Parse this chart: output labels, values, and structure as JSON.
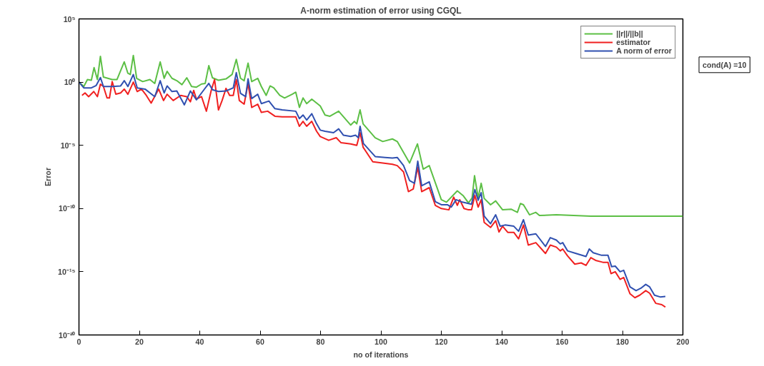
{
  "chart_data": {
    "type": "line",
    "title": "A-norm estimation of error using CGQL",
    "xlabel": "no of iterations",
    "ylabel": "Error",
    "log": "y",
    "xlim": [
      0,
      200
    ],
    "xticks": [
      0,
      20,
      40,
      60,
      80,
      100,
      120,
      140,
      160,
      180,
      200
    ],
    "ylim": [
      1e-20,
      100000
    ],
    "yticks": [
      {
        "value": 1e-20,
        "label": "10⁻²⁰"
      },
      {
        "value": 1e-15,
        "label": "10⁻¹⁵"
      },
      {
        "value": 1e-10,
        "label": "10⁻¹⁰"
      },
      {
        "value": 1e-05,
        "label": "10⁻⁵"
      },
      {
        "value": 1,
        "label": "10⁰"
      },
      {
        "value": 100000,
        "label": "10⁵"
      }
    ],
    "grid": false,
    "legend": "top right",
    "marker": "none",
    "line_style": "solid",
    "annotations": [
      "cond(A) =10"
    ],
    "series": [
      {
        "name": "||r||/||b||",
        "color": "#5cbf45",
        "x": [
          0,
          1.6,
          2.8,
          4.1,
          5,
          6.1,
          7.1,
          8.1,
          11,
          12.6,
          15,
          16.2,
          17,
          18,
          19.1,
          21.1,
          23.5,
          25.1,
          26.9,
          28.2,
          29.2,
          30.8,
          32.4,
          34.1,
          35.7,
          37.3,
          38.9,
          40.6,
          41.8,
          43,
          44.2,
          46.2,
          48.7,
          50.7,
          52.1,
          53.5,
          54.7,
          56,
          57.2,
          59.2,
          60.4,
          62,
          63.3,
          64.5,
          66.5,
          68.1,
          70.6,
          71.8,
          73,
          74.2,
          75.4,
          77.1,
          79.9,
          81.5,
          83.1,
          86,
          90,
          91.2,
          92,
          93.1,
          94.1,
          98.1,
          100.6,
          103.8,
          105.4,
          109.5,
          112.1,
          114,
          116,
          120,
          121.7,
          125.3,
          127.3,
          129,
          130.2,
          131,
          132.2,
          133.2,
          134.2,
          136.3,
          138,
          140.3,
          143.1,
          145.2,
          146.2,
          147.2,
          149.2,
          151.3,
          152.5,
          158.1,
          169.5,
          200
        ],
        "values": [
          1,
          0.45,
          1.6,
          1.4,
          14,
          1.6,
          110,
          2.5,
          1.6,
          1.6,
          40,
          5,
          4,
          130,
          2,
          1.1,
          1.6,
          0.79,
          40,
          2,
          7.1,
          2,
          1.3,
          0.63,
          2.2,
          0.45,
          0.4,
          0.71,
          0.79,
          20,
          2.2,
          1.4,
          1.8,
          4,
          63,
          2,
          1.3,
          32,
          1.1,
          2,
          0.45,
          0.089,
          0.5,
          0.35,
          0.089,
          0.056,
          0.11,
          0.16,
          0.01,
          0.056,
          0.02,
          0.045,
          0.013,
          0.0025,
          0.002,
          0.005,
          0.0004,
          0.00079,
          0.0005,
          0.0063,
          0.0005,
          4e-05,
          2e-05,
          3.2e-05,
          2e-05,
          4e-07,
          1.3e-05,
          1.3e-07,
          2.5e-07,
          5e-10,
          3.2e-10,
          2.5e-09,
          1e-09,
          2.8e-10,
          7.1e-10,
          4e-08,
          7.1e-10,
          1e-08,
          6.3e-10,
          2e-10,
          4e-10,
          7.9e-11,
          8.9e-11,
          5e-11,
          2.5e-10,
          2e-10,
          3.2e-11,
          5e-11,
          2.8e-11,
          3.2e-11,
          2.5e-11,
          2.5e-11
        ]
      },
      {
        "name": "estimator",
        "color": "#f02020",
        "x": [
          1,
          2,
          3.2,
          4.9,
          6.1,
          7.1,
          8.1,
          9.3,
          10.1,
          11,
          12.2,
          13.8,
          15,
          16.2,
          18,
          19.3,
          20.7,
          22.3,
          23.9,
          26.4,
          28,
          29.2,
          31.2,
          33.7,
          35.7,
          36.9,
          38,
          38.9,
          40.6,
          42.2,
          43.8,
          44.9,
          46.2,
          47.4,
          48.7,
          49.9,
          51.1,
          52.1,
          53.1,
          54.7,
          56,
          57.2,
          59.2,
          60.4,
          62.5,
          64.9,
          67.3,
          71.8,
          73,
          74.2,
          75.4,
          77.1,
          78.7,
          79.9,
          82.7,
          85.2,
          86.8,
          90,
          92,
          93.1,
          94.1,
          97.3,
          100.6,
          103.8,
          105.4,
          107.5,
          109.1,
          110.7,
          112.2,
          113.5,
          116,
          118,
          120,
          122.5,
          124.1,
          125.3,
          126.1,
          127.5,
          129,
          130,
          131.1,
          132.2,
          133.2,
          134.2,
          136.3,
          138,
          139.1,
          140.3,
          142,
          144,
          145.6,
          147.2,
          148.8,
          151.3,
          154.5,
          156.1,
          158.1,
          159.4,
          160.2,
          161.8,
          164.2,
          166.3,
          167.9,
          169.5,
          171.1,
          173.5,
          175.2,
          176.2,
          177.6,
          179.2,
          180.4,
          182.5,
          184.1,
          185.7,
          187.7,
          189,
          191,
          193,
          194.2
        ],
        "values": [
          0.089,
          0.14,
          0.071,
          0.18,
          0.071,
          0.68,
          0.45,
          0.056,
          0.056,
          1.1,
          0.11,
          0.14,
          0.28,
          0.11,
          1,
          0.18,
          0.28,
          0.089,
          0.022,
          0.28,
          0.035,
          0.11,
          0.035,
          0.089,
          0.071,
          0.028,
          0.22,
          0.045,
          0.071,
          0.005,
          0.22,
          1.6,
          0.0063,
          0.035,
          0.32,
          0.089,
          0.089,
          1.6,
          0.035,
          0.018,
          0.83,
          0.01,
          0.018,
          0.004,
          0.005,
          0.002,
          0.0018,
          0.0018,
          0.00032,
          0.00079,
          0.00032,
          0.00079,
          0.00013,
          5e-05,
          2.5e-05,
          4e-05,
          1.6e-05,
          1.3e-05,
          1e-05,
          0.0001,
          7.1e-06,
          5e-07,
          4e-07,
          3.2e-07,
          2.5e-07,
          7.9e-08,
          2.2e-09,
          3.5e-09,
          1.8e-07,
          2.2e-09,
          4.5e-09,
          1.8e-10,
          1e-10,
          7.9e-11,
          7.9e-10,
          1.8e-10,
          5e-10,
          1e-10,
          7.9e-11,
          7.9e-11,
          1.1e-09,
          1.3e-10,
          5e-10,
          7.9e-12,
          3.2e-12,
          1.1e-11,
          1.4e-12,
          4e-12,
          1.3e-12,
          1.3e-12,
          4e-13,
          5e-12,
          1.3e-13,
          2e-13,
          2.8e-14,
          1.3e-13,
          8.9e-14,
          4.5e-14,
          6.3e-14,
          1.8e-14,
          4e-15,
          5e-15,
          3.2e-15,
          1.3e-14,
          7.9e-15,
          5.6e-15,
          5.6e-15,
          7.1e-16,
          1e-15,
          2.5e-16,
          3.5e-16,
          1.8e-17,
          8.9e-18,
          1.4e-17,
          3.2e-17,
          2e-17,
          3.2e-18,
          2.5e-18,
          1.6e-18
        ]
      },
      {
        "name": "A norm of error",
        "color": "#3050b0",
        "x": [
          0,
          1.6,
          4.1,
          5.7,
          7.1,
          8.1,
          11,
          13.8,
          15,
          16.2,
          18,
          19.3,
          21.9,
          25.1,
          26.9,
          28.2,
          29.2,
          30.8,
          32.4,
          34.9,
          36.9,
          38.9,
          41.4,
          43,
          44.2,
          46.2,
          48.7,
          51.1,
          52.1,
          53.5,
          55.2,
          56,
          57.2,
          59.2,
          60.4,
          62.9,
          64.9,
          67.3,
          71.8,
          73,
          74.2,
          75.4,
          77.1,
          78.7,
          79.9,
          81.5,
          84.3,
          86,
          87.6,
          90,
          91.6,
          92.5,
          93.1,
          94.2,
          98.1,
          101.4,
          103.8,
          105.4,
          107.5,
          109.5,
          111.1,
          112.2,
          113.5,
          116,
          118,
          120,
          122,
          123.3,
          124.9,
          127,
          129,
          130,
          131.1,
          132.2,
          133.2,
          134.2,
          136.3,
          138,
          139.5,
          141.1,
          144,
          145.6,
          147.2,
          148.8,
          151.3,
          154.5,
          156.1,
          158.1,
          159.4,
          160.2,
          161.8,
          164.6,
          167.9,
          169,
          170.3,
          173.1,
          175.2,
          176.4,
          177.6,
          179.2,
          180.4,
          182.5,
          184.5,
          186.1,
          187.7,
          189,
          190.6,
          192.6,
          194.2
        ],
        "values": [
          1,
          0.35,
          0.35,
          0.54,
          2.3,
          0.45,
          0.45,
          0.5,
          1.3,
          0.45,
          4,
          0.35,
          0.28,
          0.071,
          1.3,
          0.14,
          0.5,
          0.18,
          0.2,
          0.016,
          0.2,
          0.04,
          0.25,
          0.79,
          0.25,
          0.18,
          0.2,
          0.35,
          5.6,
          0.13,
          0.071,
          1.8,
          0.05,
          0.11,
          0.02,
          0.032,
          0.0079,
          0.0063,
          0.005,
          0.0013,
          0.0025,
          0.001,
          0.0032,
          0.0005,
          0.00016,
          0.00013,
          0.0001,
          0.0002,
          6.3e-05,
          5e-05,
          6.3e-05,
          4e-05,
          0.00032,
          1.4e-05,
          1.3e-06,
          1.1e-06,
          1e-06,
          1.1e-06,
          2.5e-07,
          1.6e-08,
          1e-08,
          5.6e-07,
          6.3e-09,
          1.3e-08,
          3.5e-10,
          2e-10,
          2e-10,
          1.3e-10,
          5e-10,
          3.2e-10,
          2.5e-10,
          2.2e-10,
          3.2e-09,
          4.5e-10,
          1.8e-09,
          2.5e-11,
          6.3e-12,
          3.2e-11,
          4e-12,
          5e-12,
          4e-12,
          1.6e-12,
          1.3e-11,
          7.9e-13,
          1e-12,
          1e-13,
          5e-13,
          3.2e-13,
          1.6e-13,
          2e-13,
          4.5e-14,
          2.8e-14,
          1.6e-14,
          6.3e-14,
          3.2e-14,
          2e-14,
          2e-14,
          2.5e-15,
          2.8e-15,
          1e-15,
          1.3e-15,
          6.3e-17,
          3.2e-17,
          5e-17,
          1e-16,
          6.3e-17,
          1.4e-17,
          1e-17,
          1.1e-17
        ]
      }
    ]
  }
}
